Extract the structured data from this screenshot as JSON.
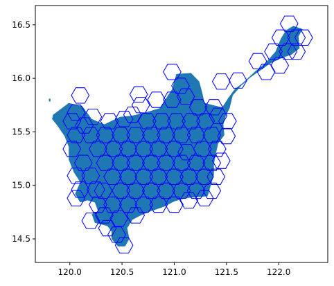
{
  "chart_data": {
    "type": "map",
    "title": "",
    "xlabel": "",
    "ylabel": "",
    "xlim": [
      119.67,
      122.47
    ],
    "ylim": [
      14.28,
      16.68
    ],
    "xticks": [
      120.0,
      120.5,
      121.0,
      121.5,
      122.0
    ],
    "xtick_labels": [
      "120.0",
      "120.5",
      "121.0",
      "121.5",
      "122.0"
    ],
    "yticks": [
      14.5,
      15.0,
      15.5,
      16.0,
      16.5
    ],
    "ytick_labels": [
      "14.5",
      "15.0",
      "15.5",
      "16.0",
      "16.5"
    ],
    "grid": false,
    "land_color": "#1f77b4",
    "hex_edge_color": "#0000ff",
    "hex_cell_radius_deg": 0.085,
    "hex_cells": [
      [
        122.1,
        16.51
      ],
      [
        122.17,
        16.38
      ],
      [
        122.02,
        16.38
      ],
      [
        122.09,
        16.25
      ],
      [
        122.24,
        16.38
      ],
      [
        121.95,
        16.25
      ],
      [
        121.8,
        16.16
      ],
      [
        122.01,
        16.12
      ],
      [
        122.17,
        16.25
      ],
      [
        121.88,
        16.06
      ],
      [
        121.61,
        15.98
      ],
      [
        121.45,
        15.97
      ],
      [
        120.98,
        16.06
      ],
      [
        121.06,
        15.93
      ],
      [
        121.11,
        15.83
      ],
      [
        120.98,
        15.8
      ],
      [
        120.83,
        15.8
      ],
      [
        120.68,
        15.75
      ],
      [
        120.6,
        15.66
      ],
      [
        120.52,
        15.62
      ],
      [
        120.38,
        15.6
      ],
      [
        120.22,
        15.64
      ],
      [
        120.06,
        15.68
      ],
      [
        120.14,
        15.56
      ],
      [
        120.02,
        15.6
      ],
      [
        120.06,
        15.47
      ],
      [
        120.2,
        15.47
      ],
      [
        120.34,
        15.47
      ],
      [
        120.49,
        15.47
      ],
      [
        120.63,
        15.47
      ],
      [
        120.78,
        15.47
      ],
      [
        120.92,
        15.47
      ],
      [
        121.07,
        15.47
      ],
      [
        121.21,
        15.47
      ],
      [
        121.36,
        15.47
      ],
      [
        121.51,
        15.6
      ],
      [
        121.42,
        15.65
      ],
      [
        121.3,
        15.6
      ],
      [
        121.16,
        15.6
      ],
      [
        121.02,
        15.6
      ],
      [
        120.88,
        15.6
      ],
      [
        120.74,
        15.6
      ],
      [
        121.23,
        15.73
      ],
      [
        121.38,
        15.73
      ],
      [
        121.12,
        15.31
      ],
      [
        120.02,
        15.34
      ],
      [
        120.13,
        15.21
      ],
      [
        120.27,
        15.34
      ],
      [
        120.42,
        15.34
      ],
      [
        120.56,
        15.34
      ],
      [
        120.71,
        15.34
      ],
      [
        120.85,
        15.34
      ],
      [
        121.0,
        15.34
      ],
      [
        121.27,
        15.34
      ],
      [
        121.41,
        15.34
      ],
      [
        121.5,
        15.46
      ],
      [
        120.06,
        15.09
      ],
      [
        120.2,
        15.09
      ],
      [
        120.34,
        15.21
      ],
      [
        120.49,
        15.21
      ],
      [
        120.63,
        15.21
      ],
      [
        120.78,
        15.21
      ],
      [
        120.92,
        15.21
      ],
      [
        121.07,
        15.21
      ],
      [
        121.21,
        15.21
      ],
      [
        121.36,
        15.21
      ],
      [
        121.45,
        15.23
      ],
      [
        120.1,
        14.96
      ],
      [
        120.25,
        14.96
      ],
      [
        120.41,
        15.08
      ],
      [
        120.56,
        15.08
      ],
      [
        120.71,
        15.08
      ],
      [
        120.85,
        15.08
      ],
      [
        121.0,
        15.08
      ],
      [
        121.14,
        15.08
      ],
      [
        121.29,
        15.08
      ],
      [
        121.4,
        15.08
      ],
      [
        120.06,
        14.88
      ],
      [
        120.32,
        14.95
      ],
      [
        120.49,
        14.95
      ],
      [
        120.63,
        14.95
      ],
      [
        120.78,
        14.95
      ],
      [
        120.92,
        14.95
      ],
      [
        121.07,
        14.95
      ],
      [
        121.21,
        14.95
      ],
      [
        121.36,
        14.95
      ],
      [
        120.27,
        14.82
      ],
      [
        120.41,
        14.82
      ],
      [
        120.56,
        14.82
      ],
      [
        120.71,
        14.82
      ],
      [
        120.85,
        14.82
      ],
      [
        121.0,
        14.82
      ],
      [
        121.14,
        14.86
      ],
      [
        121.29,
        14.88
      ],
      [
        120.33,
        14.72
      ],
      [
        120.47,
        14.69
      ],
      [
        120.63,
        14.72
      ],
      [
        120.2,
        14.67
      ],
      [
        120.36,
        14.6
      ],
      [
        120.45,
        14.54
      ],
      [
        120.52,
        14.44
      ],
      [
        120.1,
        15.84
      ],
      [
        120.66,
        15.85
      ]
    ],
    "land_outline": [
      [
        119.84,
        15.66
      ],
      [
        119.99,
        15.77
      ],
      [
        120.12,
        15.74
      ],
      [
        120.21,
        15.62
      ],
      [
        120.33,
        15.57
      ],
      [
        120.48,
        15.64
      ],
      [
        120.59,
        15.65
      ],
      [
        120.72,
        15.68
      ],
      [
        120.86,
        15.72
      ],
      [
        120.98,
        15.9
      ],
      [
        121.02,
        16.04
      ],
      [
        121.16,
        16.05
      ],
      [
        121.24,
        15.97
      ],
      [
        121.27,
        15.86
      ],
      [
        121.29,
        15.77
      ],
      [
        121.41,
        15.74
      ],
      [
        121.46,
        15.73
      ],
      [
        121.52,
        15.82
      ],
      [
        121.58,
        15.9
      ],
      [
        121.66,
        15.96
      ],
      [
        121.77,
        16.06
      ],
      [
        121.87,
        16.14
      ],
      [
        121.97,
        16.25
      ],
      [
        122.02,
        16.37
      ],
      [
        122.07,
        16.45
      ],
      [
        122.14,
        16.49
      ],
      [
        122.23,
        16.46
      ],
      [
        122.19,
        16.39
      ],
      [
        122.2,
        16.28
      ],
      [
        122.12,
        16.22
      ],
      [
        122.03,
        16.19
      ],
      [
        121.92,
        16.14
      ],
      [
        121.82,
        16.07
      ],
      [
        121.73,
        16.01
      ],
      [
        121.64,
        15.93
      ],
      [
        121.56,
        15.84
      ],
      [
        121.53,
        15.72
      ],
      [
        121.49,
        15.64
      ],
      [
        121.47,
        15.57
      ],
      [
        121.48,
        15.47
      ],
      [
        121.42,
        15.39
      ],
      [
        121.4,
        15.3
      ],
      [
        121.38,
        15.2
      ],
      [
        121.38,
        15.1
      ],
      [
        121.35,
        15.0
      ],
      [
        121.32,
        14.9
      ],
      [
        121.22,
        14.89
      ],
      [
        121.1,
        14.88
      ],
      [
        121.0,
        14.85
      ],
      [
        120.9,
        14.8
      ],
      [
        120.78,
        14.76
      ],
      [
        120.68,
        14.72
      ],
      [
        120.6,
        14.68
      ],
      [
        120.55,
        14.6
      ],
      [
        120.57,
        14.5
      ],
      [
        120.53,
        14.43
      ],
      [
        120.46,
        14.43
      ],
      [
        120.4,
        14.5
      ],
      [
        120.4,
        14.57
      ],
      [
        120.36,
        14.62
      ],
      [
        120.24,
        14.65
      ],
      [
        120.21,
        14.73
      ],
      [
        120.27,
        14.76
      ],
      [
        120.24,
        14.84
      ],
      [
        120.17,
        14.86
      ],
      [
        120.1,
        14.84
      ],
      [
        120.05,
        14.92
      ],
      [
        120.1,
        15.03
      ],
      [
        120.04,
        15.12
      ],
      [
        119.99,
        15.24
      ],
      [
        119.99,
        15.36
      ],
      [
        119.95,
        15.46
      ],
      [
        119.88,
        15.56
      ],
      [
        119.83,
        15.62
      ]
    ]
  }
}
